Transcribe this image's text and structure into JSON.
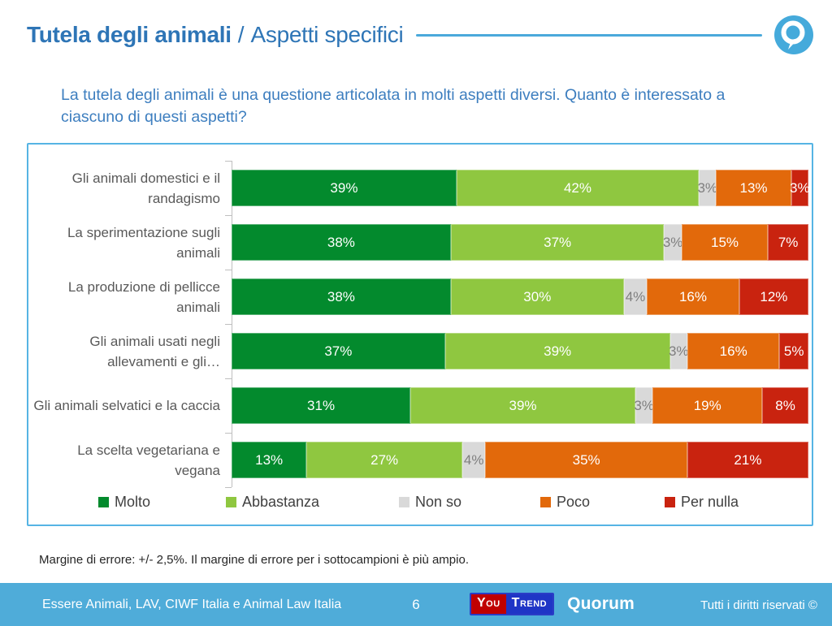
{
  "header": {
    "title_bold": "Tutela degli animali",
    "title_separator": "/",
    "title_regular": "Aspetti specifici"
  },
  "question": "La tutela degli animali è una questione articolata in molti aspetti diversi. Quanto è interessato a ciascuno di questi aspetti?",
  "chart_data": {
    "type": "bar",
    "orientation": "horizontal_stacked",
    "xlim": [
      0,
      100
    ],
    "value_suffix": "%",
    "legend_position": "bottom",
    "grid": false,
    "categories": [
      "Gli animali domestici e il randagismo",
      "La sperimentazione sugli animali",
      "La produzione di pellicce animali",
      "Gli animali usati negli allevamenti e gli…",
      "Gli animali selvatici e la caccia",
      "La scelta vegetariana e vegana"
    ],
    "series": [
      {
        "name": "Molto",
        "color": "#038A2D",
        "label_color": "#FFFFFF",
        "values": [
          39,
          38,
          38,
          37,
          31,
          13
        ]
      },
      {
        "name": "Abbastanza",
        "color": "#8FC740",
        "label_color": "#FFFFFF",
        "values": [
          42,
          37,
          30,
          39,
          39,
          27
        ]
      },
      {
        "name": "Non so",
        "color": "#D9D9D9",
        "label_color": "#7F7F7F",
        "values": [
          3,
          3,
          4,
          3,
          3,
          4
        ]
      },
      {
        "name": "Poco",
        "color": "#E2690B",
        "label_color": "#FFFFFF",
        "values": [
          13,
          15,
          16,
          16,
          19,
          35
        ]
      },
      {
        "name": "Per nulla",
        "color": "#C9230F",
        "label_color": "#FFFFFF",
        "values": [
          3,
          7,
          12,
          5,
          8,
          21
        ]
      }
    ]
  },
  "footnote": "Margine di errore: +/- 2,5%. Il margine di errore per i sottocampioni è più ampio.",
  "footer": {
    "source": "Essere Animali, LAV, CIWF Italia e Animal Law Italia",
    "page_number": "6",
    "youtrend_you": "You",
    "youtrend_trend": "Trend",
    "quorum": "Quorum",
    "rights": "Tutti i diritti riservati ©"
  },
  "colors": {
    "title_blue": "#2E75B6",
    "question_blue": "#3D7EBF",
    "header_rule_blue": "#4AA9DB",
    "chart_border_blue": "#56B4E4",
    "footer_background": "#4FACD9",
    "youtrend_red": "#C00000",
    "youtrend_blue": "#1F35C6",
    "axis_gray": "#BFBFBF",
    "category_label_gray": "#595959",
    "logo_blue": "#45AADB"
  }
}
